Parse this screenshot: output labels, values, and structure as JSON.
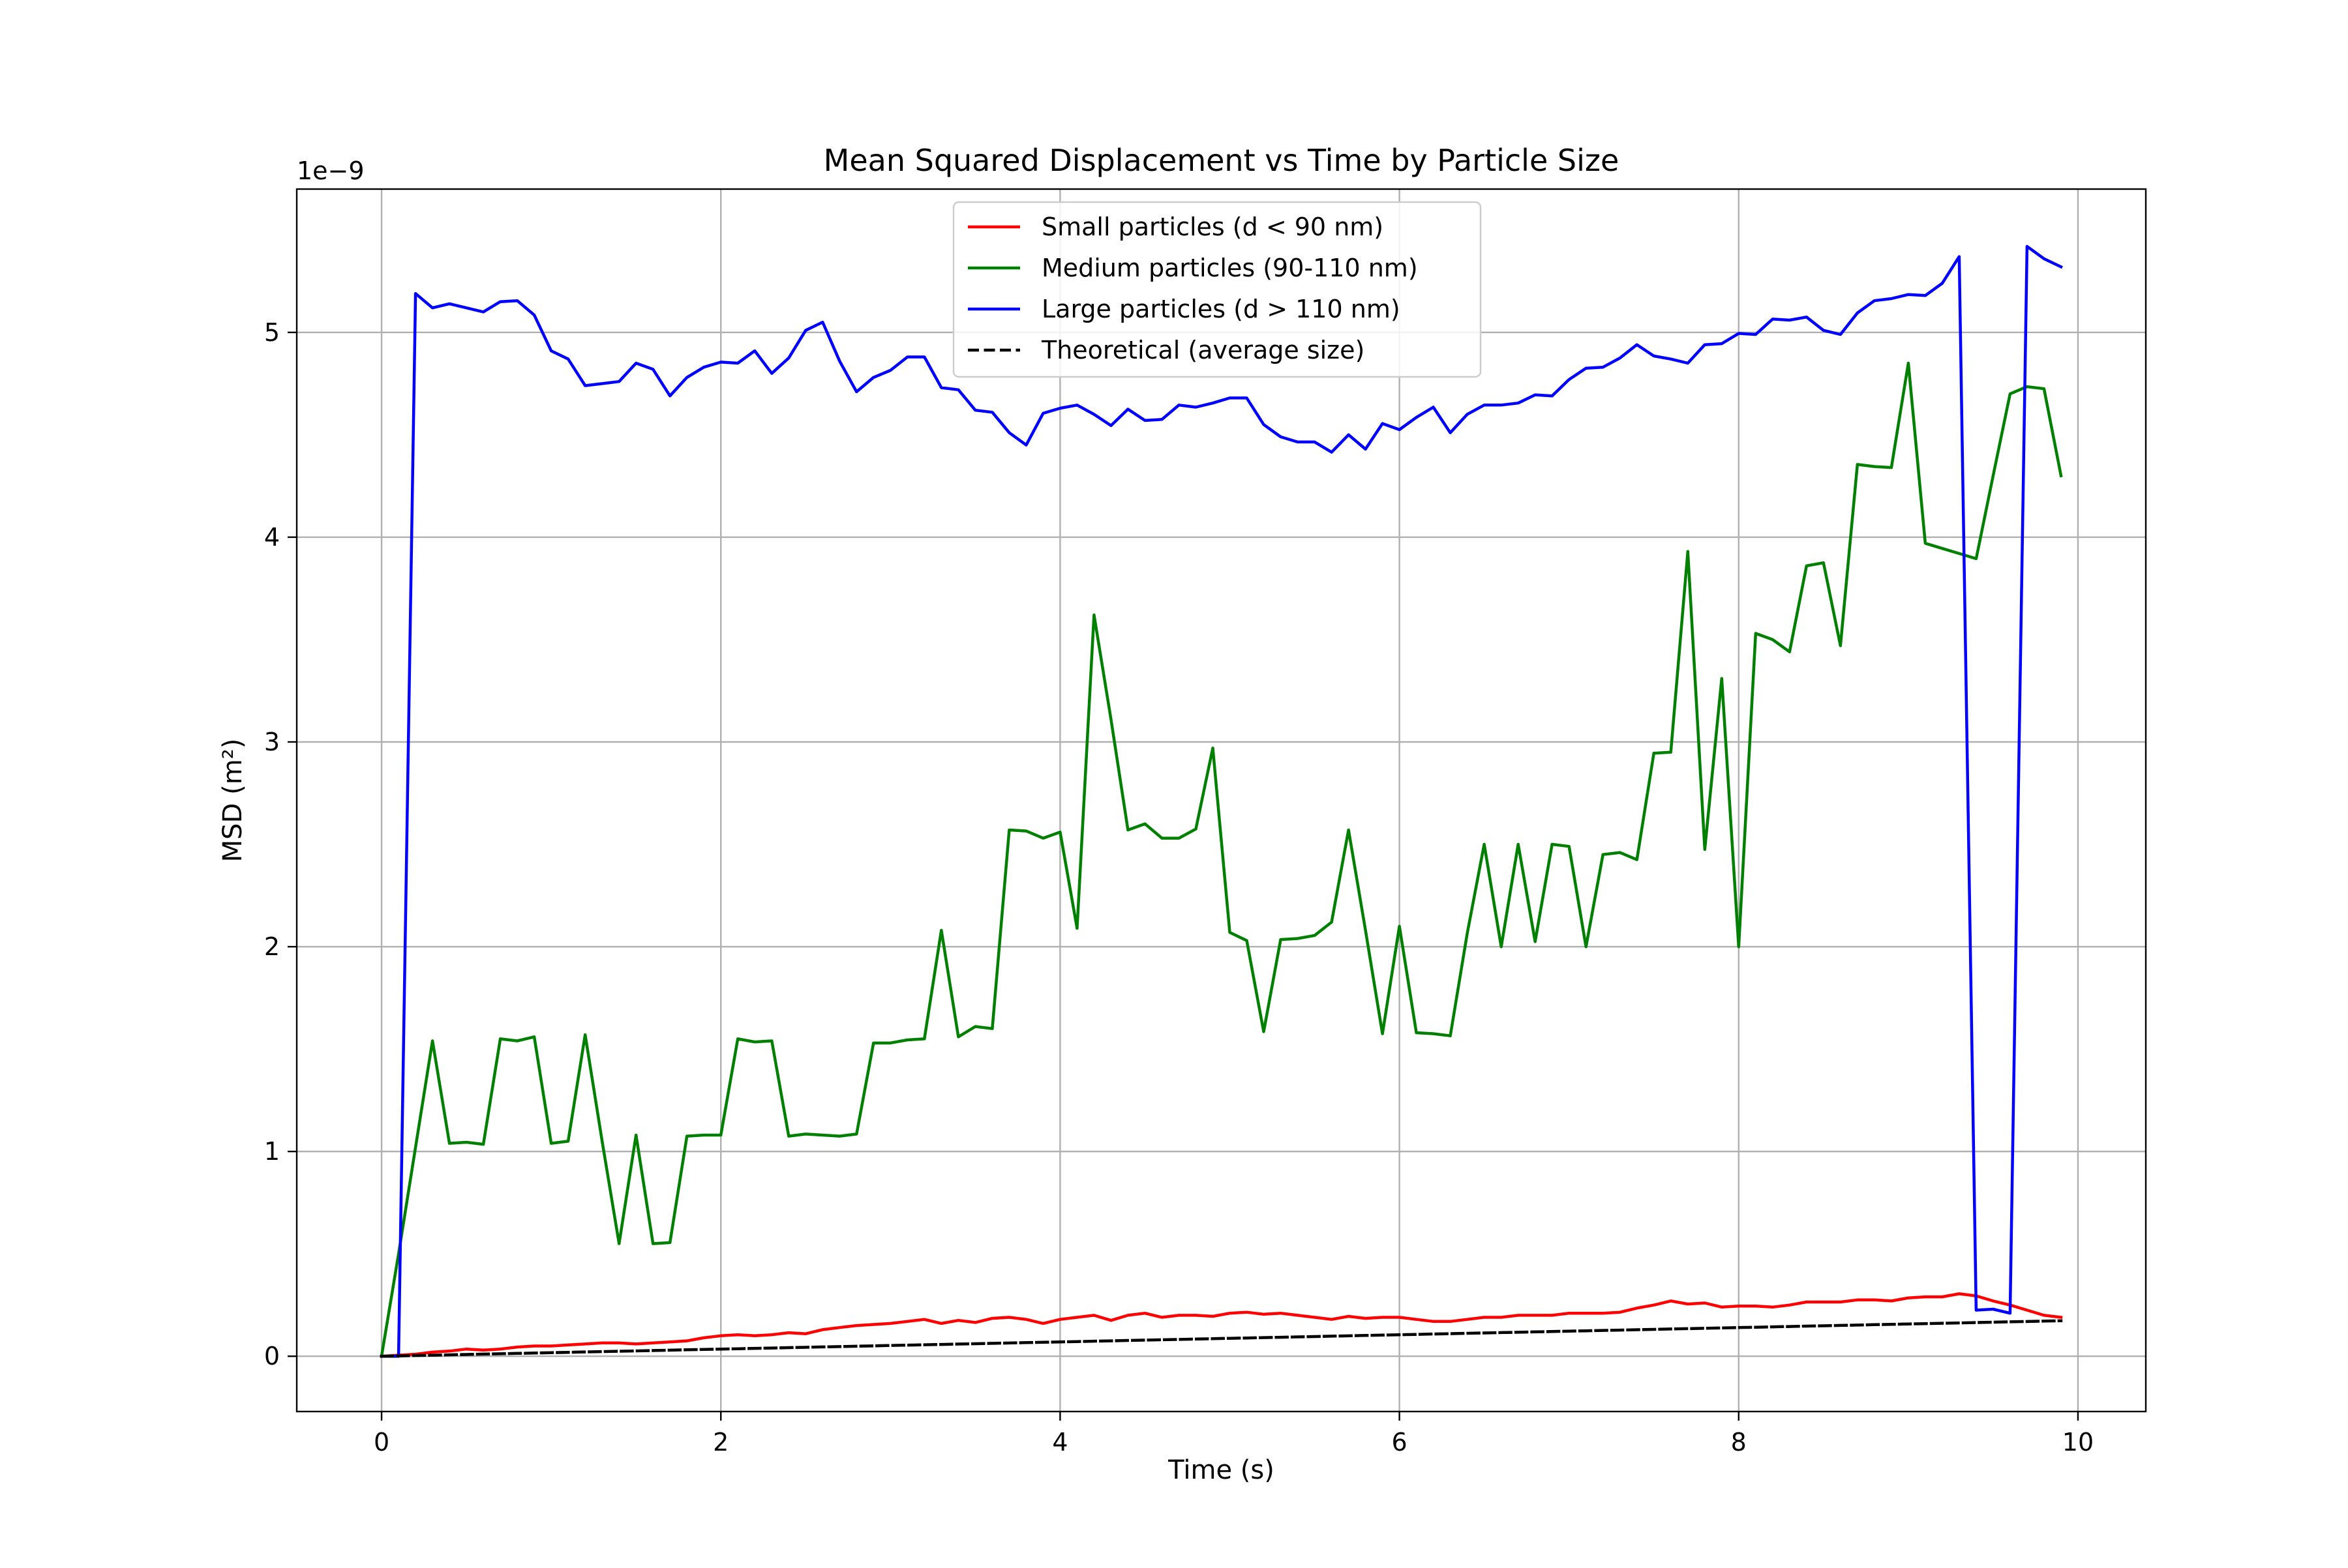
{
  "chart_data": {
    "type": "line",
    "title": "Mean Squared Displacement vs Time by Particle Size",
    "xlabel": "Time (s)",
    "ylabel": "MSD (m²)",
    "y_offset_label": "1e−9",
    "xlim": [
      -0.5,
      10.4
    ],
    "ylim": [
      -0.27,
      5.7
    ],
    "x_ticks": [
      0,
      2,
      4,
      6,
      8,
      10
    ],
    "x_tick_labels": [
      "0",
      "2",
      "4",
      "6",
      "8",
      "10"
    ],
    "y_ticks": [
      0,
      1,
      2,
      3,
      4,
      5
    ],
    "y_tick_labels": [
      "0",
      "1",
      "2",
      "3",
      "4",
      "5"
    ],
    "grid": true,
    "legend_position": "upper-center",
    "x": [
      0.0,
      0.1,
      0.2,
      0.3,
      0.4,
      0.5,
      0.6,
      0.7,
      0.8,
      0.9,
      1.0,
      1.1,
      1.2,
      1.3,
      1.4,
      1.5,
      1.6,
      1.7,
      1.8,
      1.9,
      2.0,
      2.1,
      2.2,
      2.3,
      2.4,
      2.5,
      2.6,
      2.7,
      2.8,
      2.9,
      3.0,
      3.1,
      3.2,
      3.3,
      3.4,
      3.5,
      3.6,
      3.7,
      3.8,
      3.9,
      4.0,
      4.1,
      4.2,
      4.3,
      4.4,
      4.5,
      4.6,
      4.7,
      4.8,
      4.9,
      5.0,
      5.1,
      5.2,
      5.3,
      5.4,
      5.5,
      5.6,
      5.7,
      5.8,
      5.9,
      6.0,
      6.1,
      6.2,
      6.3,
      6.4,
      6.5,
      6.6,
      6.7,
      6.8,
      6.9,
      7.0,
      7.1,
      7.2,
      7.3,
      7.4,
      7.5,
      7.6,
      7.7,
      7.8,
      7.9,
      8.0,
      8.1,
      8.2,
      8.3,
      8.4,
      8.5,
      8.6,
      8.7,
      8.8,
      8.9,
      9.0,
      9.1,
      9.2,
      9.3,
      9.4,
      9.5,
      9.6,
      9.7,
      9.8,
      9.9
    ],
    "series": [
      {
        "name": "Small particles (d < 90 nm)",
        "color": "#ff0000",
        "dash": "solid",
        "values": [
          0.0,
          0.005,
          0.01,
          0.02,
          0.025,
          0.035,
          0.03,
          0.035,
          0.045,
          0.05,
          0.05,
          0.055,
          0.06,
          0.065,
          0.065,
          0.06,
          0.065,
          0.07,
          0.075,
          0.09,
          0.1,
          0.105,
          0.1,
          0.105,
          0.115,
          0.11,
          0.13,
          0.14,
          0.15,
          0.155,
          0.16,
          0.17,
          0.18,
          0.16,
          0.175,
          0.165,
          0.185,
          0.19,
          0.18,
          0.16,
          0.18,
          0.19,
          0.2,
          0.175,
          0.2,
          0.21,
          0.19,
          0.2,
          0.2,
          0.195,
          0.21,
          0.215,
          0.205,
          0.21,
          0.2,
          0.19,
          0.18,
          0.195,
          0.185,
          0.19,
          0.19,
          0.18,
          0.17,
          0.17,
          0.18,
          0.19,
          0.19,
          0.2,
          0.2,
          0.2,
          0.21,
          0.21,
          0.21,
          0.215,
          0.235,
          0.25,
          0.27,
          0.255,
          0.26,
          0.24,
          0.245,
          0.245,
          0.24,
          0.25,
          0.265,
          0.265,
          0.265,
          0.275,
          0.275,
          0.27,
          0.285,
          0.29,
          0.29,
          0.305,
          0.295,
          0.27,
          0.25,
          0.225,
          0.2,
          0.19
        ]
      },
      {
        "name": "Medium particles (90-110 nm)",
        "color": "#008000",
        "dash": "solid",
        "values": [
          0.0,
          0.5,
          1.02,
          1.54,
          1.04,
          1.045,
          1.035,
          1.55,
          1.54,
          1.56,
          1.04,
          1.05,
          1.57,
          1.05,
          0.55,
          1.08,
          0.55,
          0.555,
          1.075,
          1.08,
          1.08,
          1.55,
          1.535,
          1.54,
          1.075,
          1.085,
          1.08,
          1.075,
          1.085,
          1.53,
          1.53,
          1.545,
          1.55,
          2.08,
          1.56,
          1.61,
          1.6,
          2.57,
          2.565,
          2.53,
          2.56,
          2.09,
          3.62,
          3.11,
          2.57,
          2.6,
          2.53,
          2.53,
          2.575,
          2.97,
          2.07,
          2.03,
          1.585,
          2.035,
          2.04,
          2.055,
          2.12,
          2.57,
          2.08,
          1.575,
          2.1,
          1.58,
          1.575,
          1.565,
          2.065,
          2.5,
          2.0,
          2.5,
          2.025,
          2.5,
          2.49,
          2.0,
          2.45,
          2.46,
          2.425,
          2.945,
          2.95,
          3.93,
          2.475,
          3.31,
          2.0,
          3.53,
          3.5,
          3.44,
          3.86,
          3.875,
          3.47,
          4.355,
          4.345,
          4.34,
          4.85,
          3.97,
          3.945,
          3.92,
          3.895,
          4.3,
          4.7,
          4.735,
          4.725,
          4.3
        ]
      },
      {
        "name": "Large particles (d > 110 nm)",
        "color": "#0000ff",
        "dash": "solid",
        "values": [
          0.0,
          0.0,
          5.19,
          5.12,
          5.14,
          5.12,
          5.1,
          5.15,
          5.155,
          5.085,
          4.91,
          4.87,
          4.74,
          4.75,
          4.76,
          4.85,
          4.82,
          4.69,
          4.78,
          4.83,
          4.855,
          4.85,
          4.91,
          4.8,
          4.875,
          5.01,
          5.05,
          4.86,
          4.71,
          4.78,
          4.815,
          4.88,
          4.88,
          4.73,
          4.72,
          4.62,
          4.61,
          4.51,
          4.45,
          4.605,
          4.63,
          4.645,
          4.6,
          4.545,
          4.625,
          4.57,
          4.575,
          4.645,
          4.635,
          4.655,
          4.68,
          4.68,
          4.55,
          4.49,
          4.465,
          4.465,
          4.415,
          4.5,
          4.43,
          4.555,
          4.525,
          4.585,
          4.635,
          4.51,
          4.6,
          4.645,
          4.645,
          4.655,
          4.695,
          4.69,
          4.77,
          4.825,
          4.83,
          4.875,
          4.94,
          4.885,
          4.87,
          4.85,
          4.94,
          4.945,
          4.995,
          4.99,
          5.065,
          5.06,
          5.075,
          5.01,
          4.99,
          5.095,
          5.155,
          5.165,
          5.185,
          5.18,
          5.24,
          5.37,
          0.225,
          0.23,
          0.21,
          5.42,
          5.36,
          5.32
        ]
      },
      {
        "name": "Theoretical (average size)",
        "color": "#000000",
        "dash": "dashed",
        "values": [
          0.0,
          0.00175,
          0.0035,
          0.00525,
          0.007,
          0.00875,
          0.0105,
          0.01225,
          0.014,
          0.01575,
          0.0175,
          0.01925,
          0.021,
          0.02275,
          0.0245,
          0.02625,
          0.028,
          0.02975,
          0.0315,
          0.03325,
          0.035,
          0.03675,
          0.0385,
          0.04025,
          0.042,
          0.04375,
          0.0455,
          0.04725,
          0.049,
          0.05075,
          0.0525,
          0.05425,
          0.056,
          0.05775,
          0.0595,
          0.06125,
          0.063,
          0.06475,
          0.0665,
          0.06825,
          0.07,
          0.07175,
          0.0735,
          0.07525,
          0.077,
          0.07875,
          0.0805,
          0.08225,
          0.084,
          0.08575,
          0.0875,
          0.08925,
          0.091,
          0.09275,
          0.0945,
          0.09625,
          0.098,
          0.09975,
          0.1015,
          0.10325,
          0.105,
          0.10675,
          0.1085,
          0.11025,
          0.112,
          0.11375,
          0.1155,
          0.11725,
          0.119,
          0.12075,
          0.1225,
          0.12425,
          0.126,
          0.12775,
          0.1295,
          0.13125,
          0.133,
          0.13475,
          0.1365,
          0.13825,
          0.14,
          0.14175,
          0.1435,
          0.14525,
          0.147,
          0.14875,
          0.1505,
          0.15225,
          0.154,
          0.15575,
          0.1575,
          0.15925,
          0.161,
          0.16275,
          0.1645,
          0.16625,
          0.168,
          0.16975,
          0.1715,
          0.17325
        ]
      }
    ]
  }
}
